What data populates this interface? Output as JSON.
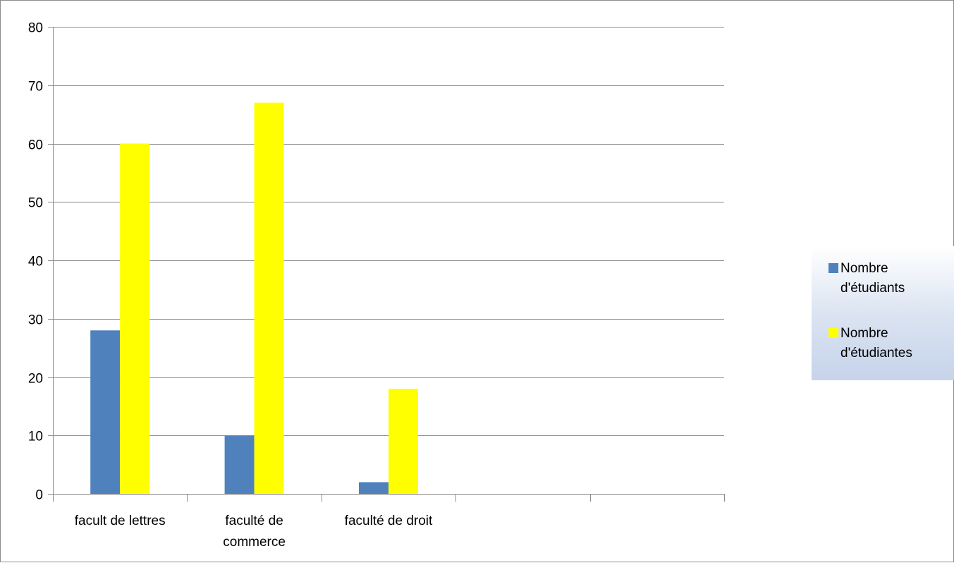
{
  "chart_data": {
    "type": "bar",
    "title": "",
    "xlabel": "",
    "ylabel": "",
    "ylim": [
      0,
      80
    ],
    "yticks": [
      0,
      10,
      20,
      30,
      40,
      50,
      60,
      70,
      80
    ],
    "grid": true,
    "legend_position": "right",
    "categories": [
      "facult de lettres",
      "faculté de commerce",
      "faculté de droit",
      "",
      ""
    ],
    "series": [
      {
        "name": "Nombre d'étudiants",
        "color": "#4f81bd",
        "values": [
          28,
          10,
          2,
          null,
          null
        ]
      },
      {
        "name": "Nombre d'étudiantes",
        "color": "#ffff00",
        "values": [
          60,
          67,
          18,
          null,
          null
        ]
      }
    ]
  },
  "legend": {
    "items": [
      {
        "label": "Nombre\nd'étudiants",
        "color": "#4f81bd"
      },
      {
        "label": "Nombre\nd'étudiantes",
        "color": "#ffff00"
      }
    ]
  }
}
